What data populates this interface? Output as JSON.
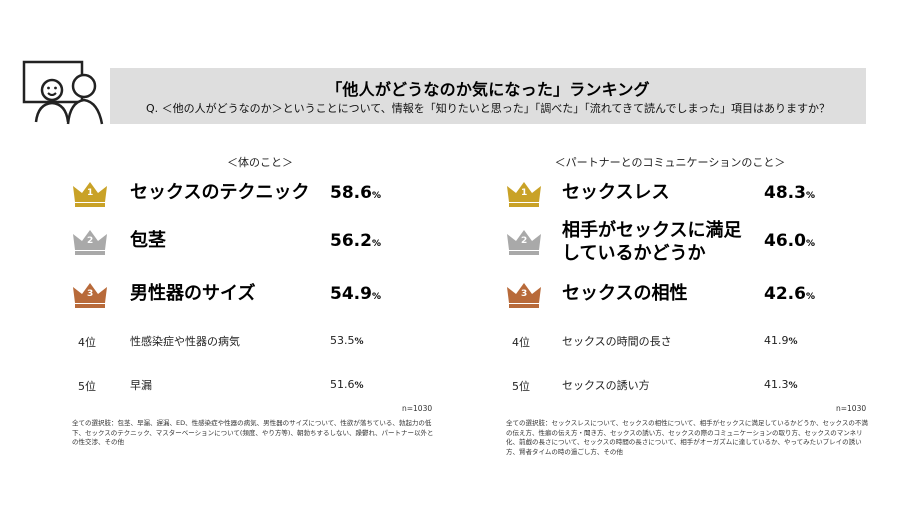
{
  "title": "「他人がどうなのか気になった」ランキング",
  "question": "Q. ＜他の人がどうなのか＞ということについて、情報を「知りたいと思った」「調べた」「流れてきて読んでしまった」項目はありますか？",
  "colors": {
    "gold": "#c9a227",
    "silver": "#a9a9a9",
    "bronze": "#b86a3a",
    "band": "#dedede"
  },
  "left": {
    "section_title": "＜体のこと＞",
    "n": "n=1030",
    "items": [
      {
        "rank": "1",
        "label": "セックスのテクニック",
        "value_num": "58.6",
        "unit": "%"
      },
      {
        "rank": "2",
        "label": "包茎",
        "value_num": "56.2",
        "unit": "%"
      },
      {
        "rank": "3",
        "label": "男性器のサイズ",
        "value_num": "54.9",
        "unit": "%"
      },
      {
        "rank": "4位",
        "label": "性感染症や性器の病気",
        "value_num": "53.5",
        "unit": "%"
      },
      {
        "rank": "5位",
        "label": "早漏",
        "value_num": "51.6",
        "unit": "%"
      }
    ],
    "footnote": "全ての選択肢：包茎、早漏、遅漏、ED、性感染症や性器の病気、男性器のサイズについて、性欲が落ちている、勃起力の低下、セックスのテクニック、マスターベーションについて(頻度、やり方等)、朝勃ちするしない、躁鬱れ、パートナー以外との性交渉、その他"
  },
  "right": {
    "section_title": "＜パートナーとのコミュニケーションのこと＞",
    "n": "n=1030",
    "items": [
      {
        "rank": "1",
        "label_line1": "セックスレス",
        "label_line2": "",
        "value_num": "48.3",
        "unit": "%"
      },
      {
        "rank": "2",
        "label_line1": "相手がセックスに満足",
        "label_line2": "しているかどうか",
        "value_num": "46.0",
        "unit": "%"
      },
      {
        "rank": "3",
        "label_line1": "セックスの相性",
        "label_line2": "",
        "value_num": "42.6",
        "unit": "%"
      },
      {
        "rank": "4位",
        "label_line1": "セックスの時間の長さ",
        "label_line2": "",
        "value_num": "41.9",
        "unit": "%"
      },
      {
        "rank": "5位",
        "label_line1": "セックスの誘い方",
        "label_line2": "",
        "value_num": "41.3",
        "unit": "%"
      }
    ],
    "footnote": "全ての選択肢：セックスレスについて、セックスの相性について、相手がセックスに満足しているかどうか、セックスの不満の伝え方、性癖の伝え方・聞き方、セックスの誘い方、セックスの際のコミュニケーションの取り方、セックスのマンネリ化、前戯の長さについて、セックスの時間の長さについて、相手がオーガズムに達しているか、やってみたいプレイの誘い方、賢者タイムの時の過ごし方、その他"
  },
  "chart_data": [
    {
      "type": "table",
      "title": "＜体のこと＞",
      "categories": [
        "セックスのテクニック",
        "包茎",
        "男性器のサイズ",
        "性感染症や性器の病気",
        "早漏"
      ],
      "values": [
        58.6,
        56.2,
        54.9,
        53.5,
        51.6
      ],
      "unit": "%"
    },
    {
      "type": "table",
      "title": "＜パートナーとのコミュニケーションのこと＞",
      "categories": [
        "セックスレス",
        "相手がセックスに満足しているかどうか",
        "セックスの相性",
        "セックスの時間の長さ",
        "セックスの誘い方"
      ],
      "values": [
        48.3,
        46.0,
        42.6,
        41.9,
        41.3
      ],
      "unit": "%"
    }
  ]
}
